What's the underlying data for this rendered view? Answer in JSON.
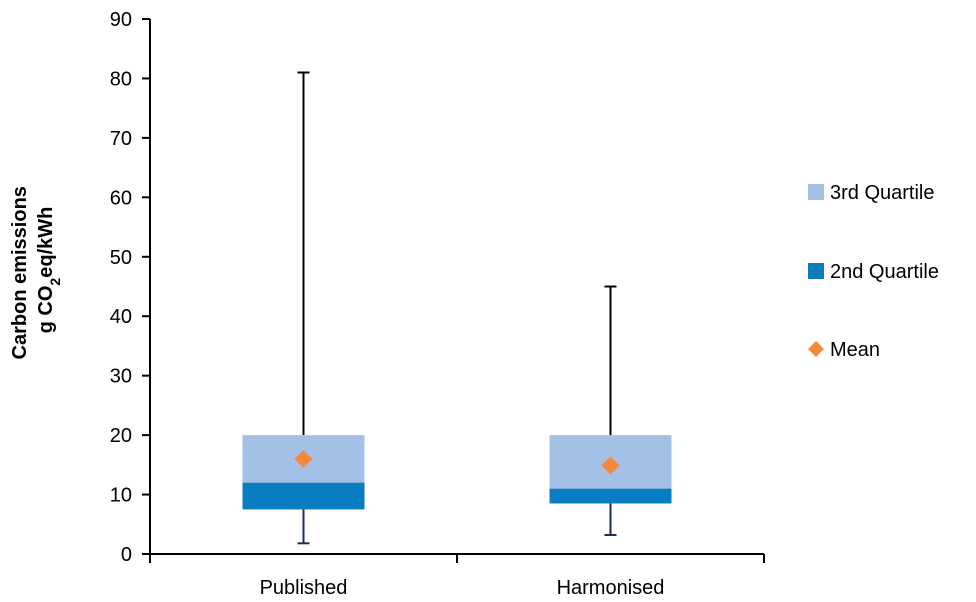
{
  "chart_data": {
    "type": "box",
    "ylabel_line1": "Carbon emissions",
    "ylabel_line2": {
      "pre": "g CO",
      "sub": "2",
      "post": "eq/kWh"
    },
    "ylim": [
      0,
      90
    ],
    "yticks": [
      0,
      10,
      20,
      30,
      40,
      50,
      60,
      70,
      80,
      90
    ],
    "categories": [
      "Published",
      "Harmonised"
    ],
    "boxes": [
      {
        "category": "Published",
        "min": 1.8,
        "q1": 7.5,
        "median": 12,
        "q3": 20,
        "max": 81,
        "mean": 16
      },
      {
        "category": "Harmonised",
        "min": 3.2,
        "q1": 8.5,
        "median": 11,
        "q3": 20,
        "max": 45,
        "mean": 14.9
      }
    ],
    "legend": {
      "position": "right",
      "items": [
        {
          "label": "3rd Quartile",
          "color": "#a3c0e6",
          "shape": "square"
        },
        {
          "label": "2nd Quartile",
          "color": "#0a7cc1",
          "shape": "square"
        },
        {
          "label": "Mean",
          "color": "#f7883a",
          "shape": "diamond"
        }
      ]
    },
    "colors": {
      "q3_fill": "#a3c0e6",
      "q2_fill": "#0a7cc1",
      "mean_marker": "#f7883a",
      "upper_whisker": "#000000",
      "lower_whisker": "#1f2a5c",
      "axis": "#000000"
    }
  }
}
